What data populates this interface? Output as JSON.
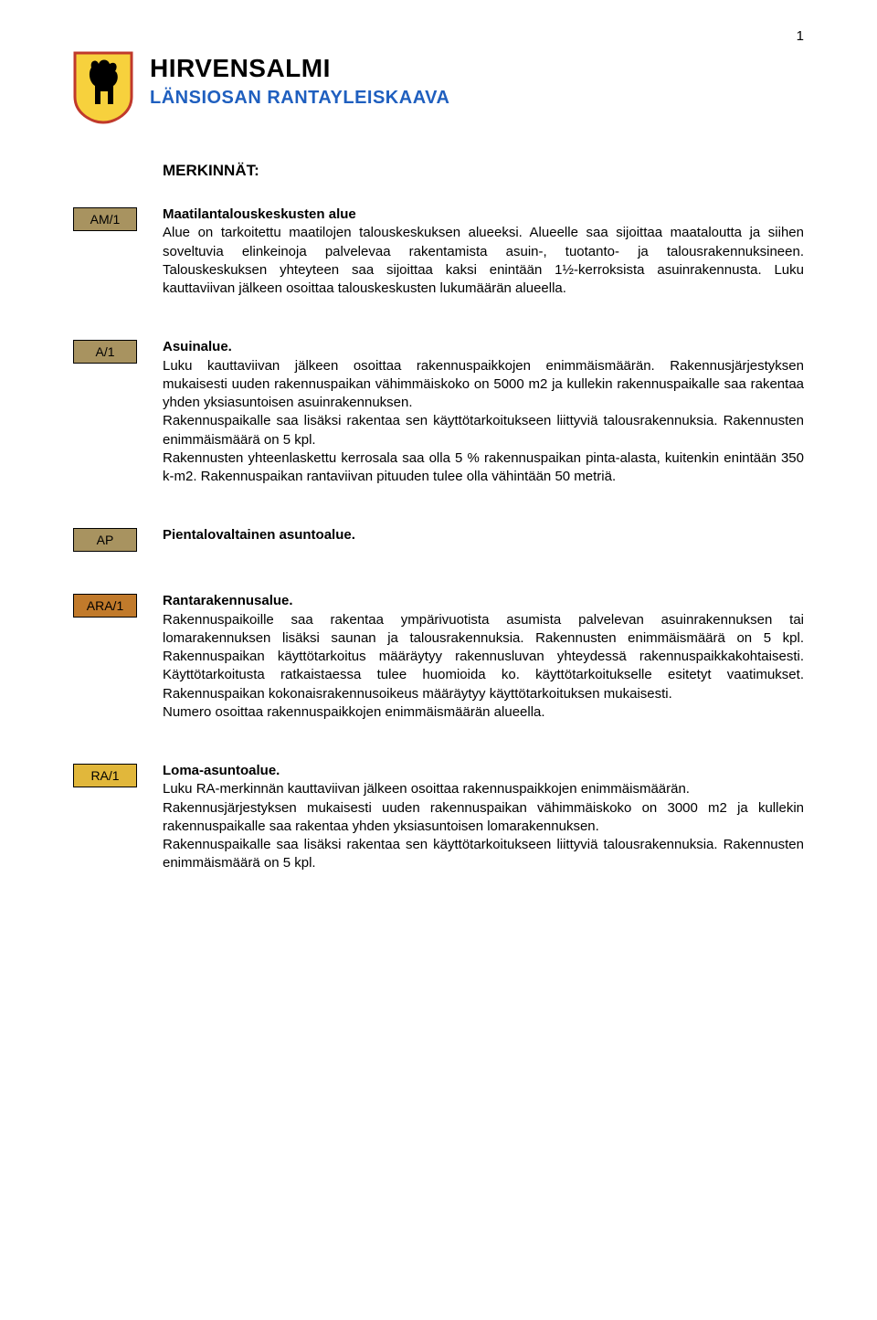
{
  "page_number": "1",
  "title": "HIRVENSALMI",
  "subtitle": "LÄNSIOSAN RANTAYLEISKAAVA",
  "subtitle_color": "#1f5fbf",
  "section_label": "MERKINNÄT:",
  "crest": {
    "shield_fill": "#f7d13d",
    "shield_stroke": "#c0392b",
    "animal_fill": "#000000"
  },
  "tags": {
    "am1": {
      "label": "AM/1",
      "bg": "#a89360"
    },
    "a1": {
      "label": "A/1",
      "bg": "#a89360"
    },
    "ap": {
      "label": "AP",
      "bg": "#a89360"
    },
    "ara1": {
      "label": "ARA/1",
      "bg": "#c17a2b"
    },
    "ra1": {
      "label": "RA/1",
      "bg": "#e1b73b"
    }
  },
  "entries": {
    "am1": {
      "heading": "Maatilantalouskeskusten alue",
      "body": "Alue on tarkoitettu maatilojen talouskeskuksen alueeksi. Alueelle saa sijoittaa maataloutta ja siihen soveltuvia elinkeinoja palvelevaa rakentamista asuin-, tuotanto- ja talousrakennuksineen. Talouskeskuksen yhteyteen saa sijoittaa kaksi enintään 1½-kerroksista asuinrakennusta. Luku kauttaviivan jälkeen osoittaa talouskeskusten lukumäärän alueella."
    },
    "a1": {
      "heading": "Asuinalue.",
      "body": "Luku kauttaviivan jälkeen osoittaa rakennuspaikkojen enimmäismäärän. Rakennusjärjestyksen mukaisesti uuden rakennuspaikan vähimmäiskoko on 5000 m2 ja kullekin rakennuspaikalle saa rakentaa yhden yksiasuntoisen asuinrakennuksen.\nRakennuspaikalle saa lisäksi rakentaa sen käyttötarkoitukseen liittyviä talousrakennuksia. Rakennusten enimmäismäärä on 5 kpl.\nRakennusten yhteenlaskettu kerrosala saa olla 5 % rakennuspaikan pinta-alasta, kuitenkin enintään 350 k-m2. Rakennuspaikan rantaviivan pituuden tulee olla vähintään 50 metriä."
    },
    "ap": {
      "heading": "Pientalovaltainen asuntoalue.",
      "body": ""
    },
    "ara1": {
      "heading": "Rantarakennusalue.",
      "body": "Rakennuspaikoille saa rakentaa ympärivuotista asumista palvelevan asuinrakennuksen tai lomarakennuksen lisäksi saunan ja talousrakennuksia. Rakennusten enimmäismäärä on 5 kpl. Rakennuspaikan käyttötarkoitus määräytyy rakennusluvan yhteydessä rakennuspaikkakohtaisesti. Käyttötarkoitusta ratkaistaessa tulee huomioida ko. käyttötarkoitukselle esitetyt vaatimukset. Rakennuspaikan kokonaisrakennusoikeus määräytyy käyttötarkoituksen mukaisesti.\nNumero osoittaa rakennuspaikkojen enimmäismäärän alueella."
    },
    "ra1": {
      "heading": "Loma-asuntoalue.",
      "body": "Luku RA-merkinnän kauttaviivan jälkeen osoittaa rakennuspaikkojen enimmäismäärän.\nRakennusjärjestyksen mukaisesti uuden rakennuspaikan vähimmäiskoko on 3000 m2 ja kullekin rakennuspaikalle saa rakentaa yhden yksiasuntoisen lomarakennuksen.\nRakennuspaikalle saa lisäksi rakentaa sen käyttötarkoitukseen liittyviä talousrakennuksia. Rakennusten enimmäismäärä on 5 kpl."
    }
  }
}
